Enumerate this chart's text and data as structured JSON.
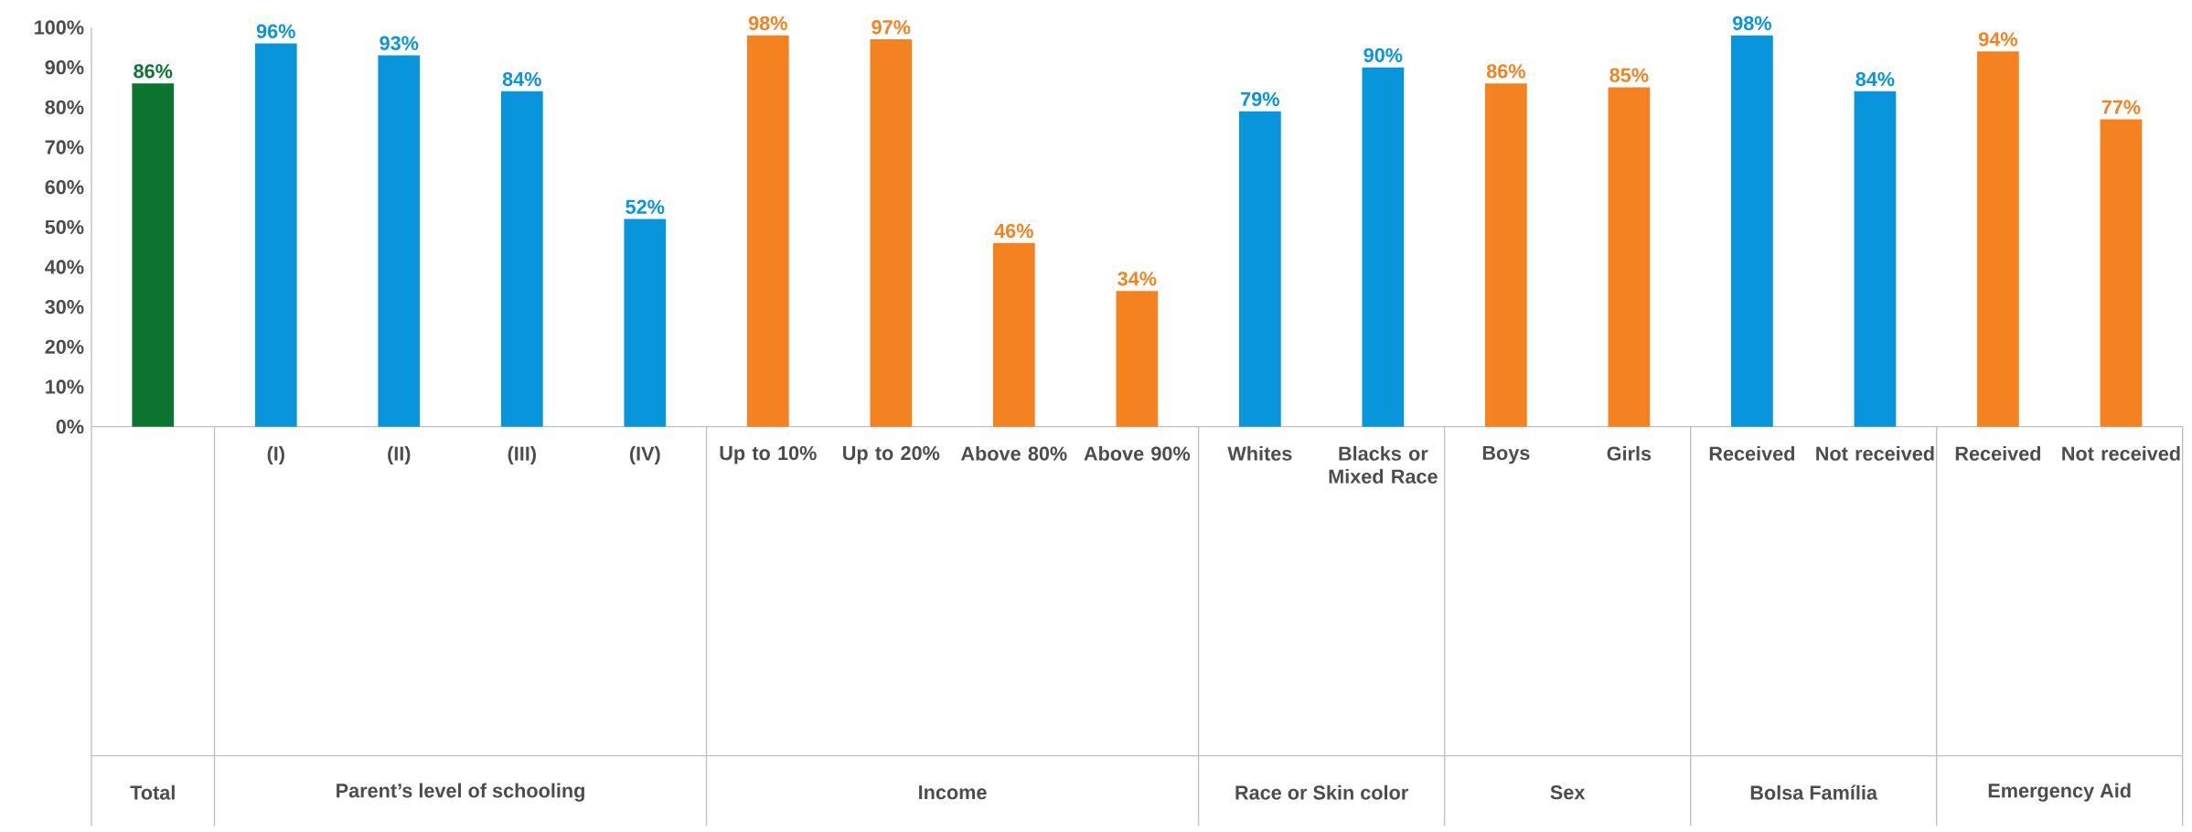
{
  "chart_data": {
    "type": "bar",
    "categories": [
      null,
      "(I)",
      "(II)",
      "(III)",
      "(IV)",
      "Up to 10%",
      "Up to 20%",
      "Above 80%",
      "Above 90%",
      "Whites",
      "Blacks or Mixed Race",
      "Boys",
      "Girls",
      "Received",
      "Not received",
      "Received",
      "Not received"
    ],
    "values": [
      86,
      96,
      93,
      84,
      52,
      98,
      97,
      46,
      34,
      79,
      90,
      86,
      85,
      98,
      84,
      94,
      77
    ],
    "value_labels": [
      "86%",
      "96%",
      "93%",
      "84%",
      "52%",
      "98%",
      "97%",
      "46%",
      "34%",
      "79%",
      "90%",
      "86%",
      "85%",
      "98%",
      "84%",
      "94%",
      "77%"
    ],
    "colors": [
      "#0b7530",
      "#0895db",
      "#0895db",
      "#0895db",
      "#0895db",
      "#f58220",
      "#f58220",
      "#f58220",
      "#f58220",
      "#0895db",
      "#0895db",
      "#f58220",
      "#f58220",
      "#0895db",
      "#0895db",
      "#f58220",
      "#f58220"
    ],
    "ylim": [
      0,
      100
    ],
    "yticks": [
      {
        "value": 0,
        "label": "0%"
      },
      {
        "value": 10,
        "label": "10%"
      },
      {
        "value": 20,
        "label": "20%"
      },
      {
        "value": 30,
        "label": "30%"
      },
      {
        "value": 40,
        "label": "40%"
      },
      {
        "value": 50,
        "label": "50%"
      },
      {
        "value": 60,
        "label": "60%"
      },
      {
        "value": 70,
        "label": "70%"
      },
      {
        "value": 80,
        "label": "80%"
      },
      {
        "value": 90,
        "label": "90%"
      },
      {
        "value": 100,
        "label": "100%"
      }
    ],
    "annotations": [
      "Total",
      "Parent’s level of schooling",
      "Income",
      "Race or Skin color",
      "Sex",
      "Bolsa Família",
      "Emergency Aid"
    ],
    "grid": false
  }
}
